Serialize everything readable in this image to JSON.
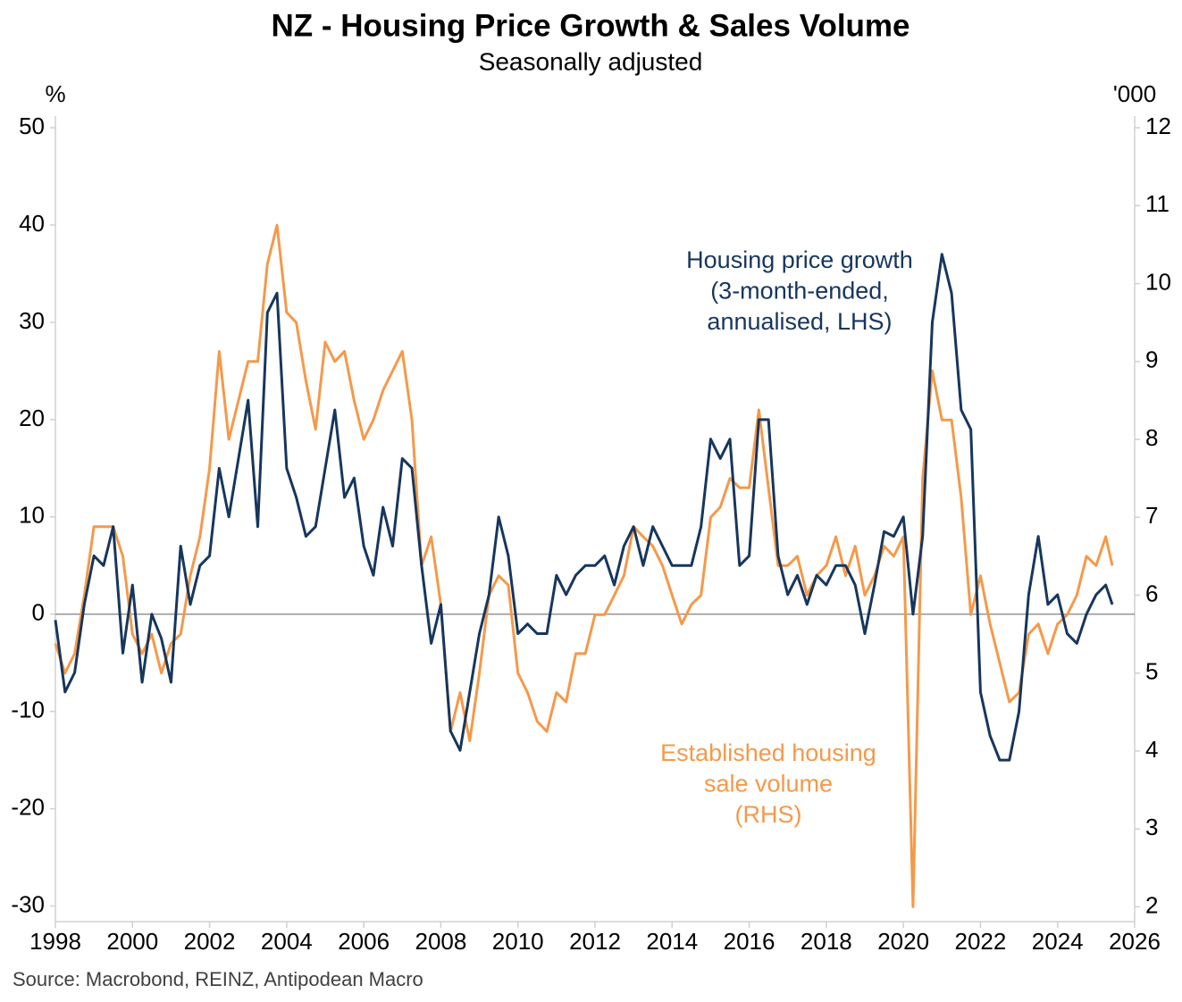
{
  "chart_data": {
    "type": "line",
    "title": "NZ - Housing Price Growth & Sales Volume",
    "subtitle": "Seasonally adjusted",
    "y_unit": "%",
    "y2_unit": "'000",
    "source": "Source: Macrobond, REINZ, Antipodean Macro",
    "xlim": [
      1998,
      2026
    ],
    "xticks": [
      1998,
      2000,
      2002,
      2004,
      2006,
      2008,
      2010,
      2012,
      2014,
      2016,
      2018,
      2020,
      2022,
      2024,
      2026
    ],
    "ylim": [
      -31.6,
      51.2
    ],
    "yticks": [
      -30,
      -20,
      -10,
      0,
      10,
      20,
      30,
      40,
      50
    ],
    "y2lim": [
      1.81,
      12.15
    ],
    "y2ticks": [
      2,
      3,
      4,
      5,
      6,
      7,
      8,
      9,
      10,
      11,
      12
    ],
    "zero_line": 0,
    "x": [
      1998,
      1998.25,
      1998.5,
      1998.75,
      1999,
      1999.25,
      1999.5,
      1999.75,
      2000,
      2000.25,
      2000.5,
      2000.75,
      2001,
      2001.25,
      2001.5,
      2001.75,
      2002,
      2002.25,
      2002.5,
      2002.75,
      2003,
      2003.25,
      2003.5,
      2003.75,
      2004,
      2004.25,
      2004.5,
      2004.75,
      2005,
      2005.25,
      2005.5,
      2005.75,
      2006,
      2006.25,
      2006.5,
      2006.75,
      2007,
      2007.25,
      2007.5,
      2007.75,
      2008,
      2008.25,
      2008.5,
      2008.75,
      2009,
      2009.25,
      2009.5,
      2009.75,
      2010,
      2010.25,
      2010.5,
      2010.75,
      2011,
      2011.25,
      2011.5,
      2011.75,
      2012,
      2012.25,
      2012.5,
      2012.75,
      2013,
      2013.25,
      2013.5,
      2013.75,
      2014,
      2014.25,
      2014.5,
      2014.75,
      2015,
      2015.25,
      2015.5,
      2015.75,
      2016,
      2016.25,
      2016.5,
      2016.75,
      2017,
      2017.25,
      2017.5,
      2017.75,
      2018,
      2018.25,
      2018.5,
      2018.75,
      2019,
      2019.25,
      2019.5,
      2019.75,
      2020,
      2020.25,
      2020.5,
      2020.75,
      2021,
      2021.25,
      2021.5,
      2021.75,
      2022,
      2022.25,
      2022.5,
      2022.75,
      2023,
      2023.25,
      2023.5,
      2023.75,
      2024,
      2024.25,
      2024.5,
      2024.75,
      2025,
      2025.25,
      2025.42
    ],
    "series": [
      {
        "name": "Housing price growth",
        "color": "#17365d",
        "axis": "y",
        "values": [
          -0.6,
          -8,
          -6,
          1,
          6,
          5,
          9,
          -4,
          3,
          -7,
          0,
          -2.5,
          -7,
          7,
          1,
          5,
          6,
          15,
          10,
          16,
          22,
          9,
          31,
          33,
          15,
          12,
          8,
          9,
          15,
          21,
          12,
          14,
          7,
          4,
          11,
          7,
          16,
          15,
          5,
          -3,
          1,
          -12,
          -14,
          -8,
          -2,
          2,
          10,
          6,
          -2,
          -1,
          -2,
          -2,
          4,
          2,
          4,
          5,
          5,
          6,
          3,
          7,
          9,
          5,
          9,
          7,
          5,
          5,
          5,
          9,
          18,
          16,
          18,
          5,
          6,
          20,
          20,
          6,
          2,
          4,
          1,
          4,
          3,
          5,
          5,
          3,
          -2,
          3,
          8.5,
          8,
          10,
          0,
          8,
          30,
          37,
          33,
          21,
          19,
          -8,
          -12.5,
          -15,
          -15,
          -10,
          2,
          8,
          1,
          2,
          -2,
          -3,
          0,
          2,
          3,
          1
        ]
      },
      {
        "name": "Established housing sale volume",
        "color": "#f5994a",
        "axis": "y2",
        "values": [
          5.38,
          5,
          5.25,
          6,
          6.88,
          6.88,
          6.88,
          6.5,
          5.5,
          5.25,
          5.5,
          5,
          5.38,
          5.5,
          6.25,
          6.75,
          7.63,
          9.13,
          8,
          8.5,
          9,
          9,
          10.25,
          10.75,
          9.63,
          9.5,
          8.75,
          8.13,
          9.25,
          9,
          9.13,
          8.5,
          8,
          8.25,
          8.63,
          8.88,
          9.13,
          8.25,
          6.38,
          6.75,
          5.88,
          4.25,
          4.75,
          4.13,
          5,
          6,
          6.25,
          6.13,
          5,
          4.75,
          4.38,
          4.25,
          4.75,
          4.63,
          5.25,
          5.25,
          5.75,
          5.75,
          6,
          6.25,
          6.88,
          6.75,
          6.63,
          6.38,
          6,
          5.63,
          5.88,
          6,
          7,
          7.13,
          7.5,
          7.38,
          7.38,
          8.38,
          7.38,
          6.38,
          6.38,
          6.5,
          6,
          6.25,
          6.38,
          6.75,
          6.25,
          6.63,
          6,
          6.25,
          6.63,
          6.5,
          6.75,
          2,
          7.5,
          8.88,
          8.25,
          8.25,
          7.25,
          5.75,
          6.25,
          5.63,
          5.13,
          4.63,
          4.75,
          5.5,
          5.63,
          5.25,
          5.63,
          5.75,
          6,
          6.5,
          6.38,
          6.75,
          6.38
        ]
      }
    ],
    "annotations": [
      {
        "lines": [
          "Housing price growth",
          "(3-month-ended,",
          "annualised, LHS)"
        ]
      },
      {
        "lines": [
          "Established housing",
          "sale volume",
          "(RHS)"
        ]
      }
    ]
  }
}
